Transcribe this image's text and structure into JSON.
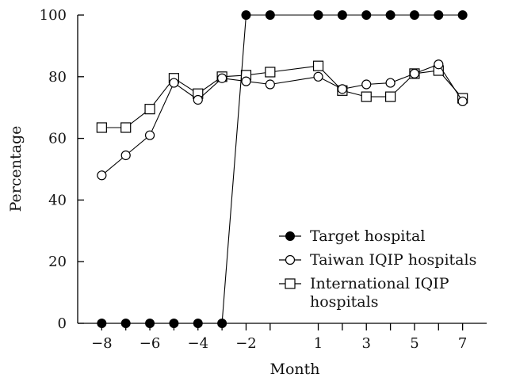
{
  "chart_data": {
    "type": "line",
    "title": "",
    "xlabel": "Month",
    "ylabel": "Percentage",
    "x": [
      -8,
      -7,
      -6,
      -5,
      -4,
      -3,
      -2,
      -1,
      1,
      2,
      3,
      4,
      5,
      6,
      7
    ],
    "x_tick_values": [
      -8,
      -6,
      -4,
      -2,
      1,
      3,
      5,
      7
    ],
    "x_tick_labels": [
      "−8",
      "−6",
      "−4",
      "−2",
      "1",
      "3",
      "5",
      "7"
    ],
    "x_minor_ticks": [
      -7,
      -5,
      -3,
      -1,
      2,
      4,
      6
    ],
    "xlim": [
      -9,
      8
    ],
    "ylim": [
      0,
      100
    ],
    "y_tick_values": [
      0,
      20,
      40,
      60,
      80,
      100
    ],
    "y_tick_labels": [
      "0",
      "20",
      "40",
      "60",
      "80",
      "100"
    ],
    "grid": false,
    "legend_position": "bottom-right",
    "series": [
      {
        "name": "Target hospital",
        "marker": "filled-circle",
        "color": "#000000",
        "values": [
          0,
          0,
          0,
          0,
          0,
          0,
          100,
          100,
          100,
          100,
          100,
          100,
          100,
          100,
          100
        ]
      },
      {
        "name": "Taiwan IQIP hospitals",
        "marker": "open-circle",
        "color": "#000000",
        "values": [
          48,
          54.5,
          61,
          78,
          72.5,
          79.5,
          78.5,
          77.5,
          80,
          76,
          77.5,
          78,
          81,
          84,
          72
        ]
      },
      {
        "name": "International IQIP hospitals",
        "legend_lines": [
          "International IQIP",
          "hospitals"
        ],
        "marker": "open-square",
        "color": "#000000",
        "values": [
          63.5,
          63.5,
          69.5,
          79.5,
          74.5,
          80,
          80.5,
          81.5,
          83.5,
          75.5,
          73.5,
          73.5,
          81,
          82,
          73
        ]
      }
    ]
  }
}
